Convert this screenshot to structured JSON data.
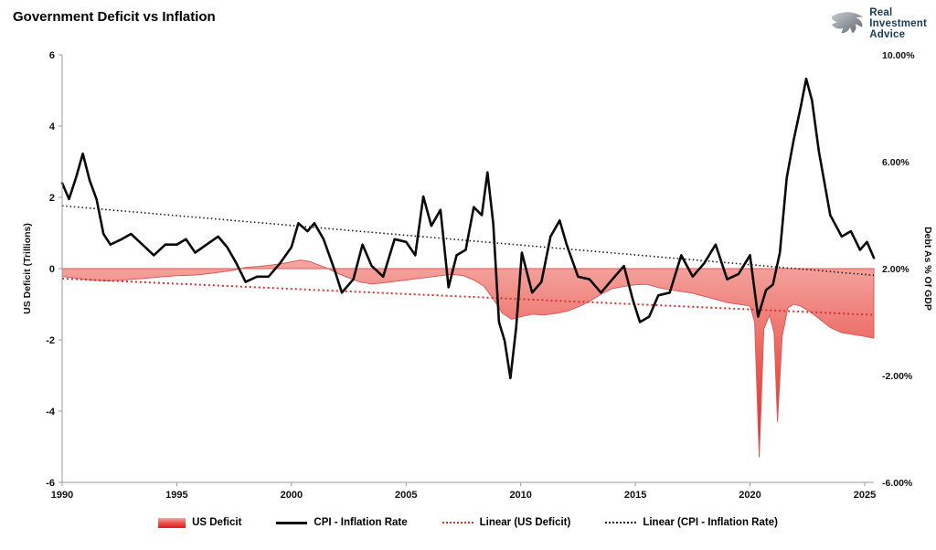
{
  "title": "Government Deficit vs Inflation",
  "logo": {
    "line1": "Real",
    "line2": "Investment",
    "line3": "Advice"
  },
  "legend": {
    "items": [
      {
        "label": "US Deficit",
        "swatch": "area"
      },
      {
        "label": "CPI - Inflation Rate",
        "swatch": "line-black"
      },
      {
        "label": "Linear (US Deficit)",
        "swatch": "dotted-red"
      },
      {
        "label": "Linear (CPI - Inflation Rate)",
        "swatch": "dotted-black"
      }
    ]
  },
  "colors": {
    "deficit_light": "#F4A6A1",
    "deficit_mid": "#EA5B53",
    "deficit_deep": "#E21F1F",
    "area_edge": "#DD5A5A",
    "cpi_black": "#0a0a0a",
    "trend_red": "#D93030",
    "trend_black": "#1f1f1f",
    "axis_gray": "#9b9b9b",
    "logo_navy": "#1a3a5c"
  },
  "chart_data": {
    "type": "combo: area + line + 2 linear trendlines",
    "title": "Government Deficit vs Inflation",
    "x_range": [
      1990,
      2025.4
    ],
    "x_ticks": [
      1990,
      1995,
      2000,
      2005,
      2010,
      2015,
      2020,
      2025
    ],
    "left_axis": {
      "title": "US Deficit (Trillions)",
      "range": [
        -6,
        6
      ],
      "ticks": [
        6,
        4,
        2,
        0,
        -2,
        -4,
        -6
      ]
    },
    "right_axis": {
      "title": "Debt As % Of GDP",
      "range": [
        -6,
        10
      ],
      "tick_labels": [
        "10.00%",
        "6.00%",
        "2.00%",
        "-2.00%",
        "-6.00%"
      ]
    },
    "grid": false,
    "legend_position": "bottom",
    "series": [
      {
        "name": "US Deficit",
        "type": "area",
        "axis": "left",
        "points": [
          [
            1990,
            -0.22
          ],
          [
            1990.5,
            -0.26
          ],
          [
            1991,
            -0.3
          ],
          [
            1991.5,
            -0.33
          ],
          [
            1992,
            -0.35
          ],
          [
            1992.5,
            -0.33
          ],
          [
            1993,
            -0.3
          ],
          [
            1993.5,
            -0.28
          ],
          [
            1994,
            -0.25
          ],
          [
            1994.5,
            -0.22
          ],
          [
            1995,
            -0.2
          ],
          [
            1995.5,
            -0.19
          ],
          [
            1996,
            -0.17
          ],
          [
            1996.5,
            -0.13
          ],
          [
            1997,
            -0.09
          ],
          [
            1997.5,
            -0.04
          ],
          [
            1998,
            0.03
          ],
          [
            1998.5,
            0.06
          ],
          [
            1999,
            0.09
          ],
          [
            1999.5,
            0.13
          ],
          [
            2000,
            0.19
          ],
          [
            2000.4,
            0.24
          ],
          [
            2000.8,
            0.2
          ],
          [
            2001.2,
            0.1
          ],
          [
            2001.6,
            0
          ],
          [
            2002,
            -0.13
          ],
          [
            2002.5,
            -0.26
          ],
          [
            2003,
            -0.38
          ],
          [
            2003.5,
            -0.43
          ],
          [
            2004,
            -0.4
          ],
          [
            2004.5,
            -0.36
          ],
          [
            2005,
            -0.32
          ],
          [
            2005.5,
            -0.28
          ],
          [
            2006,
            -0.24
          ],
          [
            2006.5,
            -0.2
          ],
          [
            2007,
            -0.16
          ],
          [
            2007.5,
            -0.2
          ],
          [
            2008,
            -0.33
          ],
          [
            2008.4,
            -0.5
          ],
          [
            2008.8,
            -0.85
          ],
          [
            2009.2,
            -1.25
          ],
          [
            2009.6,
            -1.42
          ],
          [
            2010,
            -1.35
          ],
          [
            2010.5,
            -1.28
          ],
          [
            2011,
            -1.3
          ],
          [
            2011.5,
            -1.26
          ],
          [
            2012,
            -1.2
          ],
          [
            2012.5,
            -1.08
          ],
          [
            2013,
            -0.92
          ],
          [
            2013.5,
            -0.72
          ],
          [
            2014,
            -0.56
          ],
          [
            2014.5,
            -0.5
          ],
          [
            2015,
            -0.45
          ],
          [
            2015.5,
            -0.44
          ],
          [
            2016,
            -0.53
          ],
          [
            2016.5,
            -0.59
          ],
          [
            2017,
            -0.64
          ],
          [
            2017.5,
            -0.69
          ],
          [
            2018,
            -0.78
          ],
          [
            2018.5,
            -0.86
          ],
          [
            2019,
            -0.95
          ],
          [
            2019.5,
            -1
          ],
          [
            2020,
            -1.05
          ],
          [
            2020.2,
            -1.5
          ],
          [
            2020.4,
            -5.3
          ],
          [
            2020.6,
            -1.7
          ],
          [
            2020.85,
            -1.3
          ],
          [
            2021.05,
            -1.8
          ],
          [
            2021.2,
            -4.3
          ],
          [
            2021.4,
            -1.9
          ],
          [
            2021.65,
            -1.1
          ],
          [
            2021.9,
            -1
          ],
          [
            2022.2,
            -1.05
          ],
          [
            2022.6,
            -1.2
          ],
          [
            2023,
            -1.4
          ],
          [
            2023.5,
            -1.65
          ],
          [
            2024,
            -1.8
          ],
          [
            2024.5,
            -1.85
          ],
          [
            2025,
            -1.9
          ],
          [
            2025.4,
            -1.95
          ]
        ]
      },
      {
        "name": "CPI - Inflation Rate",
        "type": "line",
        "axis": "right",
        "points": [
          [
            1990,
            5.2
          ],
          [
            1990.3,
            4.6
          ],
          [
            1990.6,
            5.4
          ],
          [
            1990.9,
            6.3
          ],
          [
            1991.2,
            5.3
          ],
          [
            1991.5,
            4.6
          ],
          [
            1991.8,
            3.3
          ],
          [
            1992.1,
            2.9
          ],
          [
            1992.6,
            3.1
          ],
          [
            1993,
            3.3
          ],
          [
            1993.5,
            2.9
          ],
          [
            1994,
            2.5
          ],
          [
            1994.5,
            2.9
          ],
          [
            1995,
            2.9
          ],
          [
            1995.4,
            3.1
          ],
          [
            1995.8,
            2.6
          ],
          [
            1996.3,
            2.9
          ],
          [
            1996.8,
            3.2
          ],
          [
            1997.2,
            2.8
          ],
          [
            1997.6,
            2.2
          ],
          [
            1998,
            1.5
          ],
          [
            1998.5,
            1.7
          ],
          [
            1999,
            1.7
          ],
          [
            1999.5,
            2.2
          ],
          [
            2000,
            2.8
          ],
          [
            2000.3,
            3.7
          ],
          [
            2000.7,
            3.4
          ],
          [
            2001,
            3.7
          ],
          [
            2001.4,
            3.1
          ],
          [
            2001.9,
            1.9
          ],
          [
            2002.2,
            1.1
          ],
          [
            2002.7,
            1.6
          ],
          [
            2003.1,
            2.9
          ],
          [
            2003.5,
            2.1
          ],
          [
            2004,
            1.7
          ],
          [
            2004.5,
            3.1
          ],
          [
            2005,
            3
          ],
          [
            2005.4,
            2.5
          ],
          [
            2005.75,
            4.7
          ],
          [
            2006.1,
            3.6
          ],
          [
            2006.5,
            4.2
          ],
          [
            2006.85,
            1.3
          ],
          [
            2007.2,
            2.5
          ],
          [
            2007.6,
            2.7
          ],
          [
            2007.95,
            4.3
          ],
          [
            2008.3,
            4
          ],
          [
            2008.55,
            5.6
          ],
          [
            2008.8,
            3.7
          ],
          [
            2009.05,
            0
          ],
          [
            2009.3,
            -0.7
          ],
          [
            2009.55,
            -2.1
          ],
          [
            2009.8,
            -0.2
          ],
          [
            2010.05,
            2.6
          ],
          [
            2010.5,
            1.1
          ],
          [
            2010.9,
            1.5
          ],
          [
            2011.3,
            3.2
          ],
          [
            2011.7,
            3.8
          ],
          [
            2012,
            2.9
          ],
          [
            2012.5,
            1.7
          ],
          [
            2013,
            1.6
          ],
          [
            2013.5,
            1.1
          ],
          [
            2014,
            1.6
          ],
          [
            2014.5,
            2.1
          ],
          [
            2014.9,
            0.8
          ],
          [
            2015.2,
            0
          ],
          [
            2015.6,
            0.2
          ],
          [
            2016,
            1
          ],
          [
            2016.5,
            1.1
          ],
          [
            2017,
            2.5
          ],
          [
            2017.5,
            1.7
          ],
          [
            2018,
            2.2
          ],
          [
            2018.5,
            2.9
          ],
          [
            2019,
            1.6
          ],
          [
            2019.5,
            1.8
          ],
          [
            2020,
            2.5
          ],
          [
            2020.35,
            0.2
          ],
          [
            2020.7,
            1.2
          ],
          [
            2021,
            1.4
          ],
          [
            2021.3,
            2.6
          ],
          [
            2021.6,
            5.4
          ],
          [
            2021.9,
            6.8
          ],
          [
            2022.2,
            8
          ],
          [
            2022.45,
            9.1
          ],
          [
            2022.7,
            8.3
          ],
          [
            2023,
            6.4
          ],
          [
            2023.5,
            4
          ],
          [
            2024,
            3.2
          ],
          [
            2024.4,
            3.4
          ],
          [
            2024.8,
            2.7
          ],
          [
            2025.1,
            3
          ],
          [
            2025.4,
            2.4
          ]
        ]
      },
      {
        "name": "Linear (US Deficit)",
        "type": "trendline",
        "axis": "left",
        "points": [
          [
            1990,
            -0.28
          ],
          [
            2025.4,
            -1.3
          ]
        ]
      },
      {
        "name": "Linear (CPI - Inflation Rate)",
        "type": "trendline",
        "axis": "right",
        "points": [
          [
            1990,
            4.35
          ],
          [
            2025.4,
            1.75
          ]
        ]
      }
    ]
  }
}
